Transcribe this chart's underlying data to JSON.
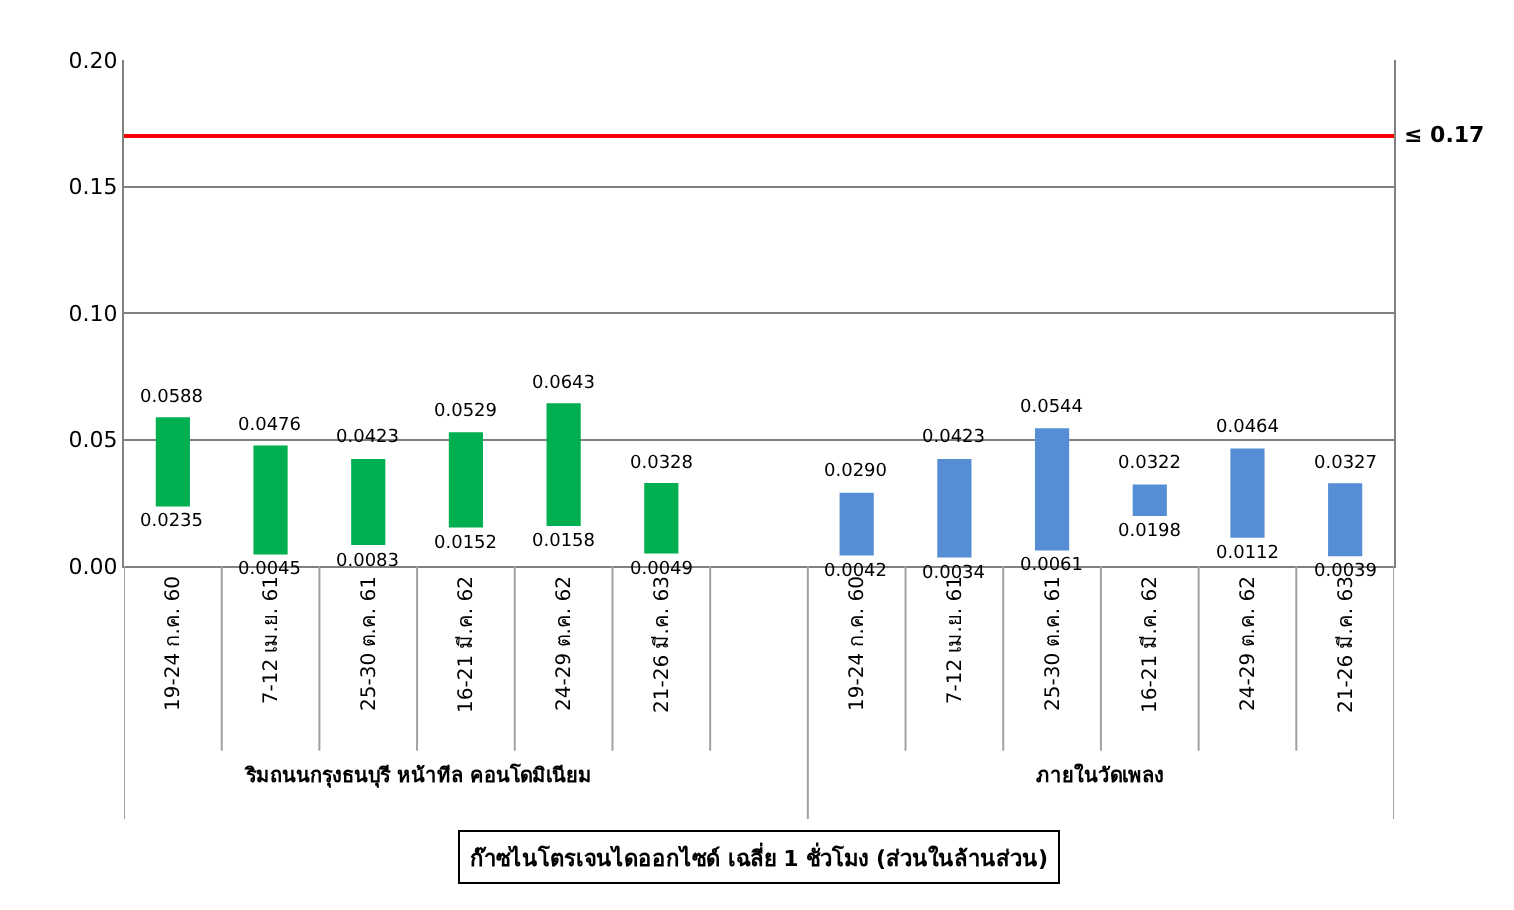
{
  "chart_data": {
    "type": "bar",
    "title": "ก๊าซไนโตรเจนไดออกไซด์ เฉลี่ย 1 ชั่วโมง (ส่วนในล้านส่วน)",
    "categories": [
      "19-24 ก.ค. 60",
      "7-12 เม.ย. 61",
      "25-30 ต.ค. 61",
      "16-21 มี.ค. 62",
      "24-29 ต.ค. 62",
      "21-26 มี.ค. 63",
      null,
      "19-24 ก.ค. 60",
      "7-12 เม.ย. 61",
      "25-30 ต.ค. 61",
      "16-21 มี.ค. 62",
      "24-29 ต.ค. 62",
      "21-26 มี.ค. 63"
    ],
    "base": [
      0.0235,
      0.0045,
      0.0083,
      0.0152,
      0.0158,
      0.0049,
      null,
      0.0042,
      0.0034,
      0.0061,
      0.0198,
      0.0112,
      0.0039
    ],
    "values": [
      0.0353,
      0.0431,
      0.034,
      0.0377,
      0.0485,
      0.0279,
      null,
      0.0248,
      0.0389,
      0.0483,
      0.0124,
      0.0352,
      0.0288
    ],
    "colors": [
      "#00b050",
      "#00b050",
      "#00b050",
      "#00b050",
      "#00b050",
      "#00b050",
      null,
      "#558ed5",
      "#558ed5",
      "#558ed5",
      "#558ed5",
      "#558ed5",
      "#558ed5"
    ],
    "ylim": [
      0,
      0.2
    ],
    "yticks": [
      {
        "value": 0,
        "label": "0.00"
      },
      {
        "value": 0.05,
        "label": "0.05"
      },
      {
        "value": 0.1,
        "label": "0.10"
      },
      {
        "value": 0.15,
        "label": "0.15"
      },
      {
        "value": 0.2,
        "label": "0.20"
      }
    ],
    "grid": "y",
    "ref_lines": [
      {
        "axis": "y",
        "value": 0.17,
        "label": "≤ 0.17",
        "color": "#ff0000"
      }
    ],
    "annotations": [
      "ริมถนนกรุงธนบุรี หน้าทีล คอนโดมิเนียม",
      "ภายในวัดเพลง",
      "0.0588",
      "0.0235",
      "0.0476",
      "0.0045",
      "0.0423",
      "0.0083",
      "0.0529",
      "0.0152",
      "0.0643",
      "0.0158",
      "0.0328",
      "0.0049",
      "0.0290",
      "0.0042",
      "0.0423",
      "0.0034",
      "0.0544",
      "0.0061",
      "0.0322",
      "0.0198",
      "0.0464",
      "0.0112",
      "0.0327",
      "0.0039"
    ]
  }
}
